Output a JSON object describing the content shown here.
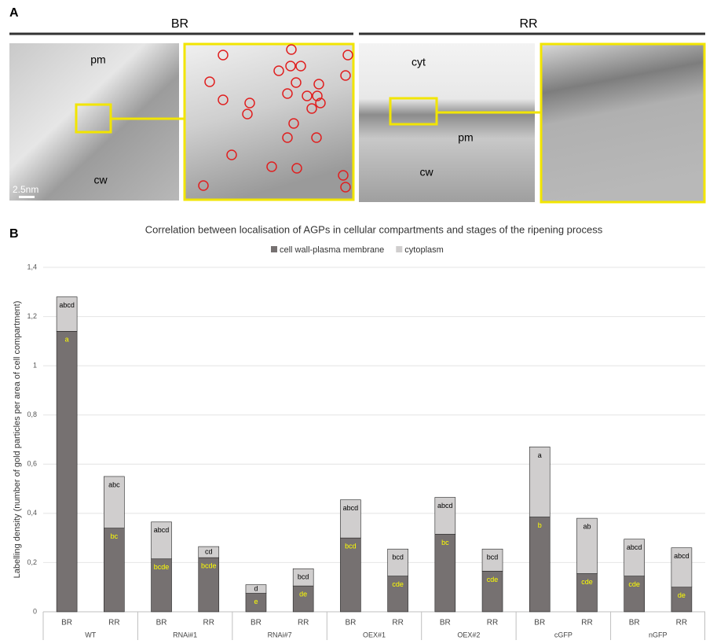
{
  "panel_a": {
    "label": "A",
    "groups": [
      "BR",
      "RR"
    ],
    "br_labels": [
      "pm",
      "cw",
      "2.5nm"
    ],
    "rr_labels": [
      "cyt",
      "pm",
      "cw"
    ]
  },
  "panel_b_label": "B",
  "chart_data": {
    "type": "bar",
    "stacked": true,
    "title": "Correlation between localisation of AGPs in cellular compartments and stages of the ripening process",
    "y_label": "Labelling density (number of gold particles per area of cell compartment)",
    "categories": [
      "BR",
      "RR",
      "BR",
      "RR",
      "BR",
      "RR",
      "BR",
      "RR",
      "BR",
      "RR",
      "BR",
      "RR",
      "BR",
      "RR"
    ],
    "groups": [
      "WT",
      "RNAi#1",
      "RNAi#7",
      "OEX#1",
      "OEX#2",
      "cGFP",
      "nGFP"
    ],
    "series": [
      {
        "name": "cell wall-plasma membrane",
        "color": "#767171",
        "label_color": "#ffff00",
        "values": [
          1.14,
          0.34,
          0.215,
          0.22,
          0.075,
          0.105,
          0.3,
          0.145,
          0.315,
          0.165,
          0.385,
          0.155,
          0.145,
          0.1
        ],
        "letters": [
          "a",
          "bc",
          "bcde",
          "bcde",
          "e",
          "de",
          "bcd",
          "cde",
          "bc",
          "cde",
          "b",
          "cde",
          "cde",
          "de"
        ]
      },
      {
        "name": "cytoplasm",
        "color": "#d0cece",
        "label_color": "#000000",
        "values": [
          0.14,
          0.21,
          0.15,
          0.045,
          0.035,
          0.07,
          0.155,
          0.11,
          0.15,
          0.09,
          0.285,
          0.225,
          0.15,
          0.16
        ],
        "letters": [
          "abcd",
          "abc",
          "abcd",
          "cd",
          "d",
          "bcd",
          "abcd",
          "bcd",
          "abcd",
          "bcd",
          "a",
          "ab",
          "abcd",
          "abcd"
        ]
      }
    ],
    "ylim": [
      0,
      1.4
    ],
    "yticks": [
      0,
      {
        "value": 0.2,
        "label": "0,2"
      },
      {
        "value": 0.4,
        "label": "0,4"
      },
      {
        "value": 0.6,
        "label": "0,6"
      },
      {
        "value": 0.8,
        "label": "0,8"
      },
      1,
      {
        "value": 1.2,
        "label": "1,2"
      },
      {
        "value": 1.4,
        "label": "1,4"
      }
    ],
    "grid": true,
    "legend": "top"
  }
}
